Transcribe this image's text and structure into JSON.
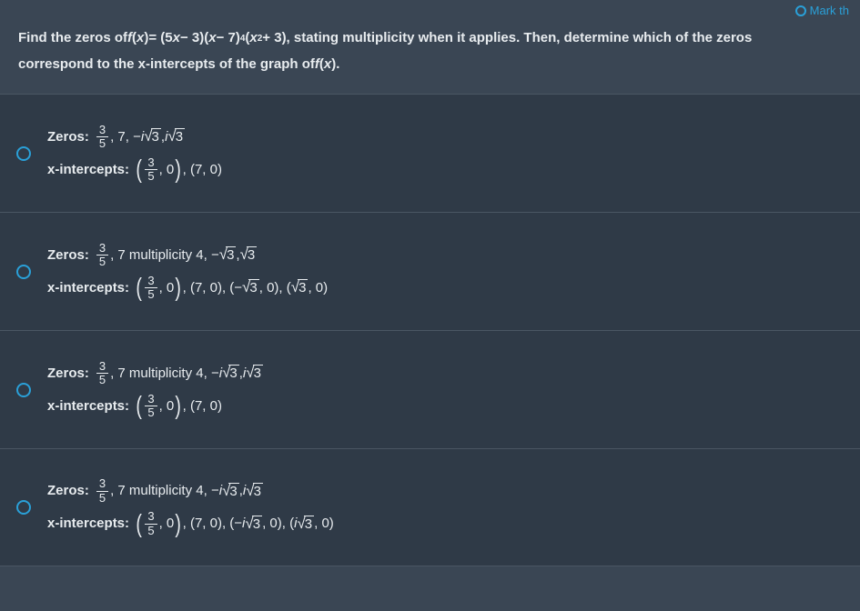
{
  "colors": {
    "page_bg": "#3a4654",
    "option_bg": "#2f3a47",
    "option_border": "#4a5663",
    "text": "#e8ecef",
    "accent": "#2aa0d8",
    "radio_border": "#2aa0d8",
    "sqrt_border": "#e8ecef"
  },
  "header": {
    "mark_label": "Mark th"
  },
  "question": {
    "prefix": "Find the zeros of ",
    "fn": "f",
    "var": "x",
    "eq": " = (5",
    "part1b": " − 3)(",
    "part1c": " − 7)",
    "exp": "4",
    "part1d": "(",
    "exp2": "2",
    "part1e": " + 3), stating multiplicity when it applies. Then, determine which of the zeros",
    "line2a": "correspond to the x-intercepts of the graph of ",
    "line2b": "."
  },
  "labels": {
    "zeros": "Zeros:",
    "xint": "x-intercepts:"
  },
  "options": [
    {
      "zeros_plain": ", 7,  −",
      "zeros_i1": "i",
      "zeros_sqrt1": "3",
      "zeros_sep": ", ",
      "zeros_i2": "i",
      "zeros_sqrt2": "3",
      "has_mult": false,
      "mult_text": "",
      "xi_mid": ", (7, 0)",
      "extra_pts": ""
    },
    {
      "zeros_plain": ", 7 multiplicity 4,  −",
      "zeros_i1": "",
      "zeros_sqrt1": "3",
      "zeros_sep": ", ",
      "zeros_i2": "",
      "zeros_sqrt2": "3",
      "has_mult": true,
      "xi_mid": ", (7, 0), (−",
      "xi_i1": "",
      "xi_sqrt1": "3",
      "xi_sep": ", 0), (",
      "xi_i2": "",
      "xi_sqrt2": "3",
      "xi_end": ", 0)"
    },
    {
      "zeros_plain": ", 7 multiplicity 4,  −",
      "zeros_i1": "i",
      "zeros_sqrt1": "3",
      "zeros_sep": ", ",
      "zeros_i2": "i",
      "zeros_sqrt2": "3",
      "has_mult": true,
      "xi_mid": ", (7, 0)",
      "xi_i1": "",
      "xi_sqrt1": "",
      "xi_sep": "",
      "xi_i2": "",
      "xi_sqrt2": "",
      "xi_end": ""
    },
    {
      "zeros_plain": ", 7 multiplicity 4,  −",
      "zeros_i1": "i",
      "zeros_sqrt1": "3",
      "zeros_sep": ", ",
      "zeros_i2": "i",
      "zeros_sqrt2": "3",
      "has_mult": true,
      "xi_mid": ", (7, 0), (−",
      "xi_i1": "i",
      "xi_sqrt1": "3",
      "xi_sep": ", 0), (",
      "xi_i2": "i",
      "xi_sqrt2": "3",
      "xi_end": ", 0)"
    }
  ],
  "frac": {
    "n": "3",
    "d": "5"
  }
}
